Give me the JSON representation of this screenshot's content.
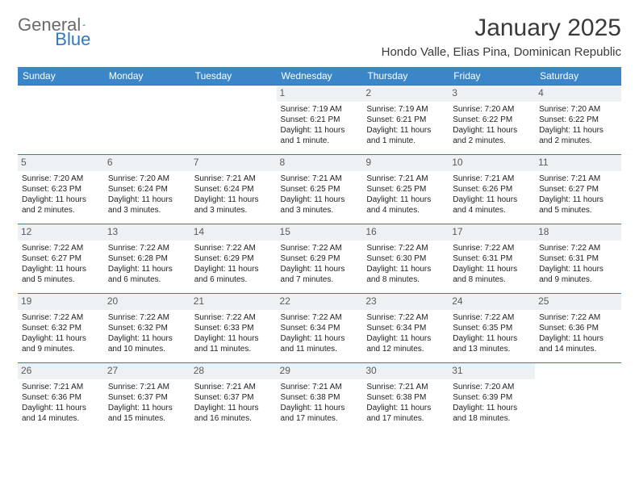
{
  "logo": {
    "text1": "General",
    "text2": "Blue"
  },
  "title": "January 2025",
  "location": "Hondo Valle, Elias Pina, Dominican Republic",
  "colors": {
    "header_bg": "#3a86c8",
    "header_text": "#ffffff",
    "rule": "#3a78b0",
    "daynum_bg": "#eef1f4",
    "logo_gray": "#6a6a6a",
    "logo_blue": "#2f78c4"
  },
  "weekdays": [
    "Sunday",
    "Monday",
    "Tuesday",
    "Wednesday",
    "Thursday",
    "Friday",
    "Saturday"
  ],
  "weeks": [
    [
      null,
      null,
      null,
      {
        "n": "1",
        "sr": "7:19 AM",
        "ss": "6:21 PM",
        "dl": "11 hours and 1 minute."
      },
      {
        "n": "2",
        "sr": "7:19 AM",
        "ss": "6:21 PM",
        "dl": "11 hours and 1 minute."
      },
      {
        "n": "3",
        "sr": "7:20 AM",
        "ss": "6:22 PM",
        "dl": "11 hours and 2 minutes."
      },
      {
        "n": "4",
        "sr": "7:20 AM",
        "ss": "6:22 PM",
        "dl": "11 hours and 2 minutes."
      }
    ],
    [
      {
        "n": "5",
        "sr": "7:20 AM",
        "ss": "6:23 PM",
        "dl": "11 hours and 2 minutes."
      },
      {
        "n": "6",
        "sr": "7:20 AM",
        "ss": "6:24 PM",
        "dl": "11 hours and 3 minutes."
      },
      {
        "n": "7",
        "sr": "7:21 AM",
        "ss": "6:24 PM",
        "dl": "11 hours and 3 minutes."
      },
      {
        "n": "8",
        "sr": "7:21 AM",
        "ss": "6:25 PM",
        "dl": "11 hours and 3 minutes."
      },
      {
        "n": "9",
        "sr": "7:21 AM",
        "ss": "6:25 PM",
        "dl": "11 hours and 4 minutes."
      },
      {
        "n": "10",
        "sr": "7:21 AM",
        "ss": "6:26 PM",
        "dl": "11 hours and 4 minutes."
      },
      {
        "n": "11",
        "sr": "7:21 AM",
        "ss": "6:27 PM",
        "dl": "11 hours and 5 minutes."
      }
    ],
    [
      {
        "n": "12",
        "sr": "7:22 AM",
        "ss": "6:27 PM",
        "dl": "11 hours and 5 minutes."
      },
      {
        "n": "13",
        "sr": "7:22 AM",
        "ss": "6:28 PM",
        "dl": "11 hours and 6 minutes."
      },
      {
        "n": "14",
        "sr": "7:22 AM",
        "ss": "6:29 PM",
        "dl": "11 hours and 6 minutes."
      },
      {
        "n": "15",
        "sr": "7:22 AM",
        "ss": "6:29 PM",
        "dl": "11 hours and 7 minutes."
      },
      {
        "n": "16",
        "sr": "7:22 AM",
        "ss": "6:30 PM",
        "dl": "11 hours and 8 minutes."
      },
      {
        "n": "17",
        "sr": "7:22 AM",
        "ss": "6:31 PM",
        "dl": "11 hours and 8 minutes."
      },
      {
        "n": "18",
        "sr": "7:22 AM",
        "ss": "6:31 PM",
        "dl": "11 hours and 9 minutes."
      }
    ],
    [
      {
        "n": "19",
        "sr": "7:22 AM",
        "ss": "6:32 PM",
        "dl": "11 hours and 9 minutes."
      },
      {
        "n": "20",
        "sr": "7:22 AM",
        "ss": "6:32 PM",
        "dl": "11 hours and 10 minutes."
      },
      {
        "n": "21",
        "sr": "7:22 AM",
        "ss": "6:33 PM",
        "dl": "11 hours and 11 minutes."
      },
      {
        "n": "22",
        "sr": "7:22 AM",
        "ss": "6:34 PM",
        "dl": "11 hours and 11 minutes."
      },
      {
        "n": "23",
        "sr": "7:22 AM",
        "ss": "6:34 PM",
        "dl": "11 hours and 12 minutes."
      },
      {
        "n": "24",
        "sr": "7:22 AM",
        "ss": "6:35 PM",
        "dl": "11 hours and 13 minutes."
      },
      {
        "n": "25",
        "sr": "7:22 AM",
        "ss": "6:36 PM",
        "dl": "11 hours and 14 minutes."
      }
    ],
    [
      {
        "n": "26",
        "sr": "7:21 AM",
        "ss": "6:36 PM",
        "dl": "11 hours and 14 minutes."
      },
      {
        "n": "27",
        "sr": "7:21 AM",
        "ss": "6:37 PM",
        "dl": "11 hours and 15 minutes."
      },
      {
        "n": "28",
        "sr": "7:21 AM",
        "ss": "6:37 PM",
        "dl": "11 hours and 16 minutes."
      },
      {
        "n": "29",
        "sr": "7:21 AM",
        "ss": "6:38 PM",
        "dl": "11 hours and 17 minutes."
      },
      {
        "n": "30",
        "sr": "7:21 AM",
        "ss": "6:38 PM",
        "dl": "11 hours and 17 minutes."
      },
      {
        "n": "31",
        "sr": "7:20 AM",
        "ss": "6:39 PM",
        "dl": "11 hours and 18 minutes."
      },
      null
    ]
  ],
  "labels": {
    "sunrise": "Sunrise:",
    "sunset": "Sunset:",
    "daylight": "Daylight:"
  }
}
